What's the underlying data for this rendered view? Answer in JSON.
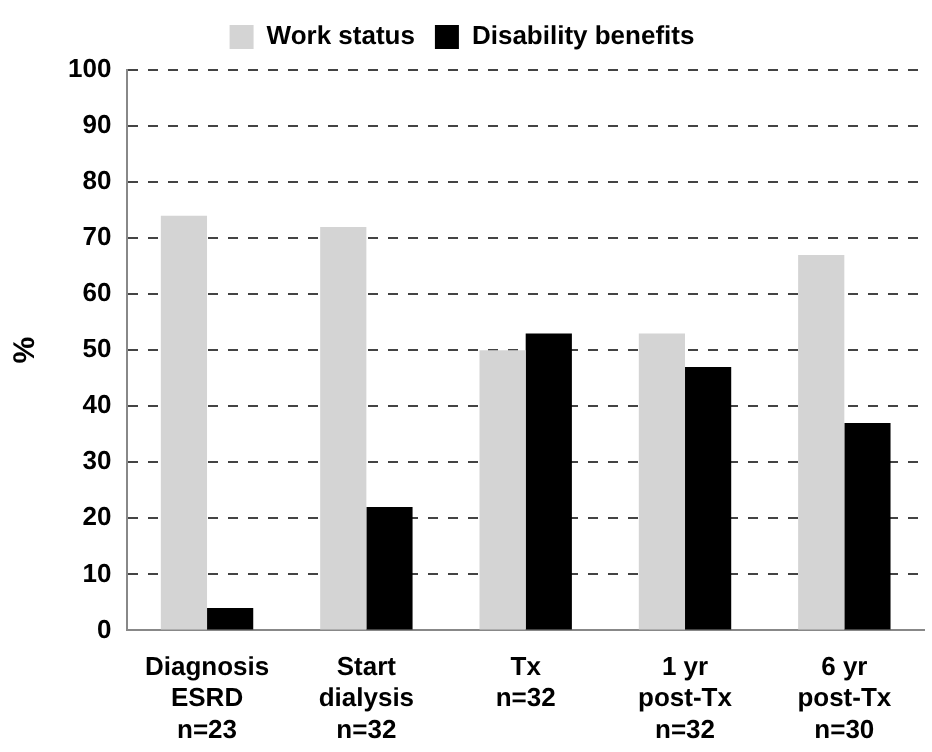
{
  "chart_data": {
    "type": "bar",
    "ylabel": "%",
    "categories": [
      "Diagnosis\nESRD\nn=23",
      "Start\ndialysis\nn=32",
      "Tx\nn=32",
      "1 yr\npost-Tx\nn=32",
      "6 yr\npost-Tx\nn=30"
    ],
    "series": [
      {
        "name": "Work status",
        "color": "#d4d4d4",
        "values": [
          74,
          72,
          50,
          53,
          67
        ]
      },
      {
        "name": "Disability benefits",
        "color": "#000000",
        "values": [
          4,
          22,
          53,
          47,
          37
        ]
      }
    ],
    "ylim": [
      0,
      100
    ],
    "yticks": [
      0,
      10,
      20,
      30,
      40,
      50,
      60,
      70,
      80,
      90,
      100
    ],
    "grid": "y",
    "legend": "top"
  }
}
